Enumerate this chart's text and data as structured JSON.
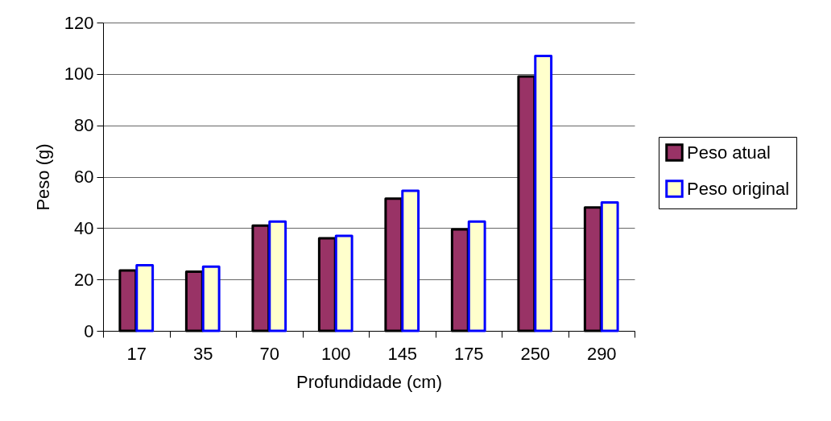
{
  "chart_data": {
    "type": "bar",
    "xlabel": "Profundidade (cm)",
    "ylabel": "Peso (g)",
    "categories": [
      "17",
      "35",
      "70",
      "100",
      "145",
      "175",
      "250",
      "290"
    ],
    "series": [
      {
        "name": "Peso atual",
        "color": "#993366",
        "values": [
          23.5,
          23,
          41,
          36,
          51.5,
          39.5,
          99,
          48
        ]
      },
      {
        "name": "Peso original",
        "color": "#ffffcc",
        "values": [
          25.5,
          25,
          42.5,
          37,
          54.5,
          42.5,
          107,
          50
        ]
      }
    ],
    "ylim": [
      0,
      120
    ],
    "yticks": [
      0,
      20,
      40,
      60,
      80,
      100,
      120
    ],
    "grid": "y",
    "legend": "right"
  }
}
